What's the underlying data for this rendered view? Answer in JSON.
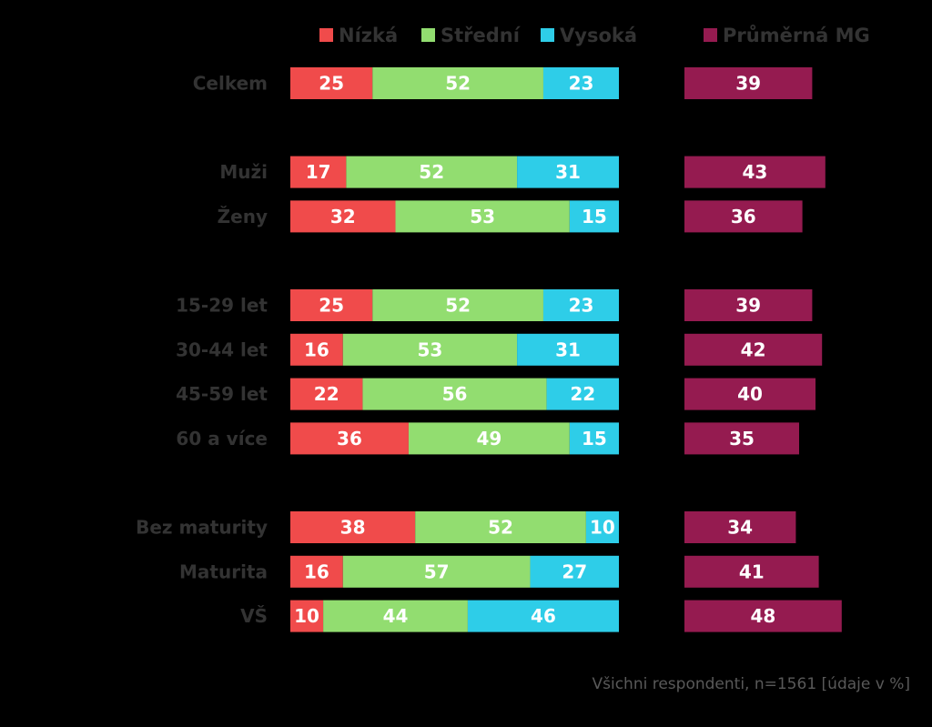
{
  "chart_data": {
    "type": "bar",
    "legend": {
      "placement": "top",
      "items": [
        {
          "name": "Nízká",
          "color": "#f04b4b"
        },
        {
          "name": "Střední",
          "color": "#92dd70"
        },
        {
          "name": "Vysoká",
          "color": "#2ecde8"
        },
        {
          "name": "Průměrná MG",
          "color": "#951b50"
        }
      ]
    },
    "categories": [
      "Celkem",
      "Muži",
      "Ženy",
      "15-29 let",
      "30-44 let",
      "45-59 let",
      "60 a více",
      "Bez maturity",
      "Maturita",
      "VŠ"
    ],
    "groups": [
      [
        "Celkem"
      ],
      [
        "Muži",
        "Ženy"
      ],
      [
        "15-29 let",
        "30-44 let",
        "45-59 let",
        "60 a více"
      ],
      [
        "Bez maturity",
        "Maturita",
        "VŠ"
      ]
    ],
    "stacked_series": [
      {
        "name": "Nízká",
        "color": "#f04b4b",
        "values": [
          25,
          17,
          32,
          25,
          16,
          22,
          36,
          38,
          16,
          10
        ]
      },
      {
        "name": "Střední",
        "color": "#92dd70",
        "values": [
          52,
          52,
          53,
          52,
          53,
          56,
          49,
          52,
          57,
          44
        ]
      },
      {
        "name": "Vysoká",
        "color": "#2ecde8",
        "values": [
          23,
          31,
          15,
          23,
          31,
          22,
          15,
          10,
          27,
          46
        ]
      }
    ],
    "mean_series": {
      "name": "Průměrná MG",
      "color": "#951b50",
      "values": [
        39,
        43,
        36,
        39,
        42,
        40,
        35,
        34,
        41,
        48
      ]
    },
    "stacked_xlim": [
      0,
      100
    ],
    "grid": false,
    "note": "Všichni respondenti, n=1561 [údaje v %]"
  }
}
